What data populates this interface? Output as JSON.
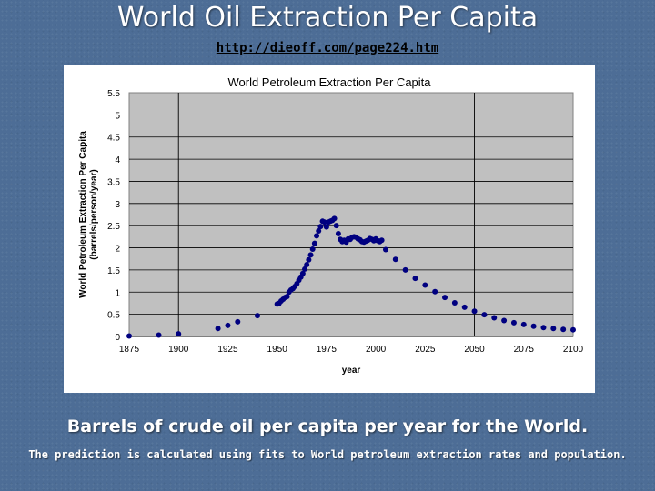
{
  "slide": {
    "title": "World Oil Extraction Per Capita",
    "source_url": "http://dieoff.com/page224.htm",
    "caption_main": "Barrels of crude oil per capita per year for the World.",
    "caption_sub": "The prediction is calculated using fits to World petroleum extraction rates and population."
  },
  "chart_data": {
    "type": "scatter",
    "title": "World Petroleum Extraction Per Capita",
    "xlabel": "year",
    "ylabel_line1": "World Petroleum Extraction Per Capita",
    "ylabel_line2": "(barrels/person/year)",
    "xlim": [
      1875,
      2100
    ],
    "ylim": [
      0,
      5.5
    ],
    "xticks": [
      1875,
      1900,
      1925,
      1950,
      1975,
      2000,
      2025,
      2050,
      2075,
      2100
    ],
    "yticks": [
      0,
      0.5,
      1,
      1.5,
      2,
      2.5,
      3,
      3.5,
      4,
      4.5,
      5,
      5.5
    ],
    "grid": "horizontal-major",
    "plot_background": "#c0c0c0",
    "marker_color": "#000080",
    "series": [
      {
        "values": [
          [
            1875,
            0.01
          ],
          [
            1890,
            0.03
          ],
          [
            1900,
            0.06
          ],
          [
            1920,
            0.18
          ],
          [
            1925,
            0.25
          ],
          [
            1930,
            0.33
          ],
          [
            1940,
            0.47
          ],
          [
            1950,
            0.73
          ],
          [
            1951,
            0.75
          ],
          [
            1952,
            0.8
          ],
          [
            1953,
            0.84
          ],
          [
            1954,
            0.88
          ],
          [
            1955,
            0.9
          ],
          [
            1956,
            1.0
          ],
          [
            1957,
            1.05
          ],
          [
            1958,
            1.08
          ],
          [
            1959,
            1.13
          ],
          [
            1960,
            1.19
          ],
          [
            1961,
            1.27
          ],
          [
            1962,
            1.34
          ],
          [
            1963,
            1.42
          ],
          [
            1964,
            1.52
          ],
          [
            1965,
            1.62
          ],
          [
            1966,
            1.73
          ],
          [
            1967,
            1.84
          ],
          [
            1968,
            1.97
          ],
          [
            1969,
            2.1
          ],
          [
            1970,
            2.27
          ],
          [
            1971,
            2.38
          ],
          [
            1972,
            2.48
          ],
          [
            1973,
            2.6
          ],
          [
            1974,
            2.58
          ],
          [
            1975,
            2.47
          ],
          [
            1976,
            2.58
          ],
          [
            1977,
            2.6
          ],
          [
            1978,
            2.62
          ],
          [
            1979,
            2.66
          ],
          [
            1980,
            2.5
          ],
          [
            1981,
            2.32
          ],
          [
            1982,
            2.19
          ],
          [
            1983,
            2.14
          ],
          [
            1984,
            2.17
          ],
          [
            1985,
            2.13
          ],
          [
            1986,
            2.2
          ],
          [
            1987,
            2.19
          ],
          [
            1988,
            2.24
          ],
          [
            1989,
            2.25
          ],
          [
            1990,
            2.24
          ],
          [
            1991,
            2.2
          ],
          [
            1992,
            2.18
          ],
          [
            1993,
            2.14
          ],
          [
            1994,
            2.13
          ],
          [
            1995,
            2.15
          ],
          [
            1996,
            2.17
          ],
          [
            1997,
            2.21
          ],
          [
            1998,
            2.19
          ],
          [
            1999,
            2.16
          ],
          [
            2000,
            2.2
          ],
          [
            2001,
            2.16
          ],
          [
            2002,
            2.14
          ],
          [
            2003,
            2.17
          ]
        ]
      },
      {
        "values": [
          [
            2005,
            1.96
          ],
          [
            2010,
            1.74
          ],
          [
            2015,
            1.5
          ],
          [
            2020,
            1.31
          ],
          [
            2025,
            1.16
          ],
          [
            2030,
            1.01
          ],
          [
            2035,
            0.88
          ],
          [
            2040,
            0.76
          ],
          [
            2045,
            0.66
          ],
          [
            2050,
            0.57
          ],
          [
            2055,
            0.49
          ],
          [
            2060,
            0.42
          ],
          [
            2065,
            0.36
          ],
          [
            2070,
            0.31
          ],
          [
            2075,
            0.27
          ],
          [
            2080,
            0.23
          ],
          [
            2085,
            0.2
          ],
          [
            2090,
            0.18
          ],
          [
            2095,
            0.16
          ],
          [
            2100,
            0.15
          ]
        ]
      }
    ]
  }
}
